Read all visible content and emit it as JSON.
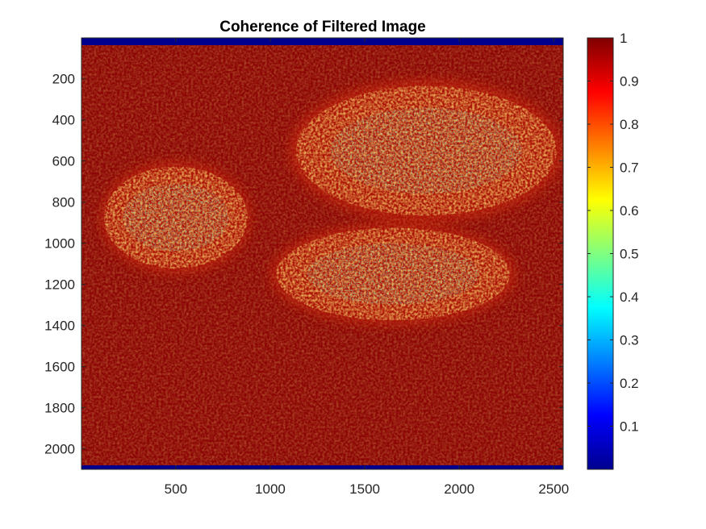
{
  "chart_data": {
    "type": "heatmap",
    "title": "Coherence of Filtered Image",
    "xlabel": "",
    "ylabel": "",
    "colormap": "jet",
    "x_ticks": [
      500,
      1000,
      1500,
      2000,
      2500
    ],
    "y_ticks": [
      200,
      400,
      600,
      800,
      1000,
      1200,
      1400,
      1600,
      1800,
      2000
    ],
    "xlim": [
      1,
      2550
    ],
    "ylim": [
      1,
      2100
    ],
    "y_direction": "reversed",
    "colorbar": {
      "ticks": [
        0.1,
        0.2,
        0.3,
        0.4,
        0.5,
        0.6,
        0.7,
        0.8,
        0.9,
        1
      ],
      "tick_labels": [
        "0.1",
        "0.2",
        "0.3",
        "0.4",
        "0.5",
        "0.6",
        "0.7",
        "0.8",
        "0.9",
        "1"
      ],
      "range": [
        0,
        1
      ]
    },
    "dominant_value": 0.97,
    "low_coherence_regions": [
      {
        "x_range": [
          1000,
          2300
        ],
        "y_range": [
          900,
          1400
        ],
        "min_value": 0.4
      },
      {
        "x_range": [
          100,
          900
        ],
        "y_range": [
          600,
          1150
        ],
        "min_value": 0.5
      },
      {
        "x_range": [
          1100,
          2550
        ],
        "y_range": [
          200,
          900
        ],
        "min_value": 0.5
      }
    ],
    "grid": false
  }
}
